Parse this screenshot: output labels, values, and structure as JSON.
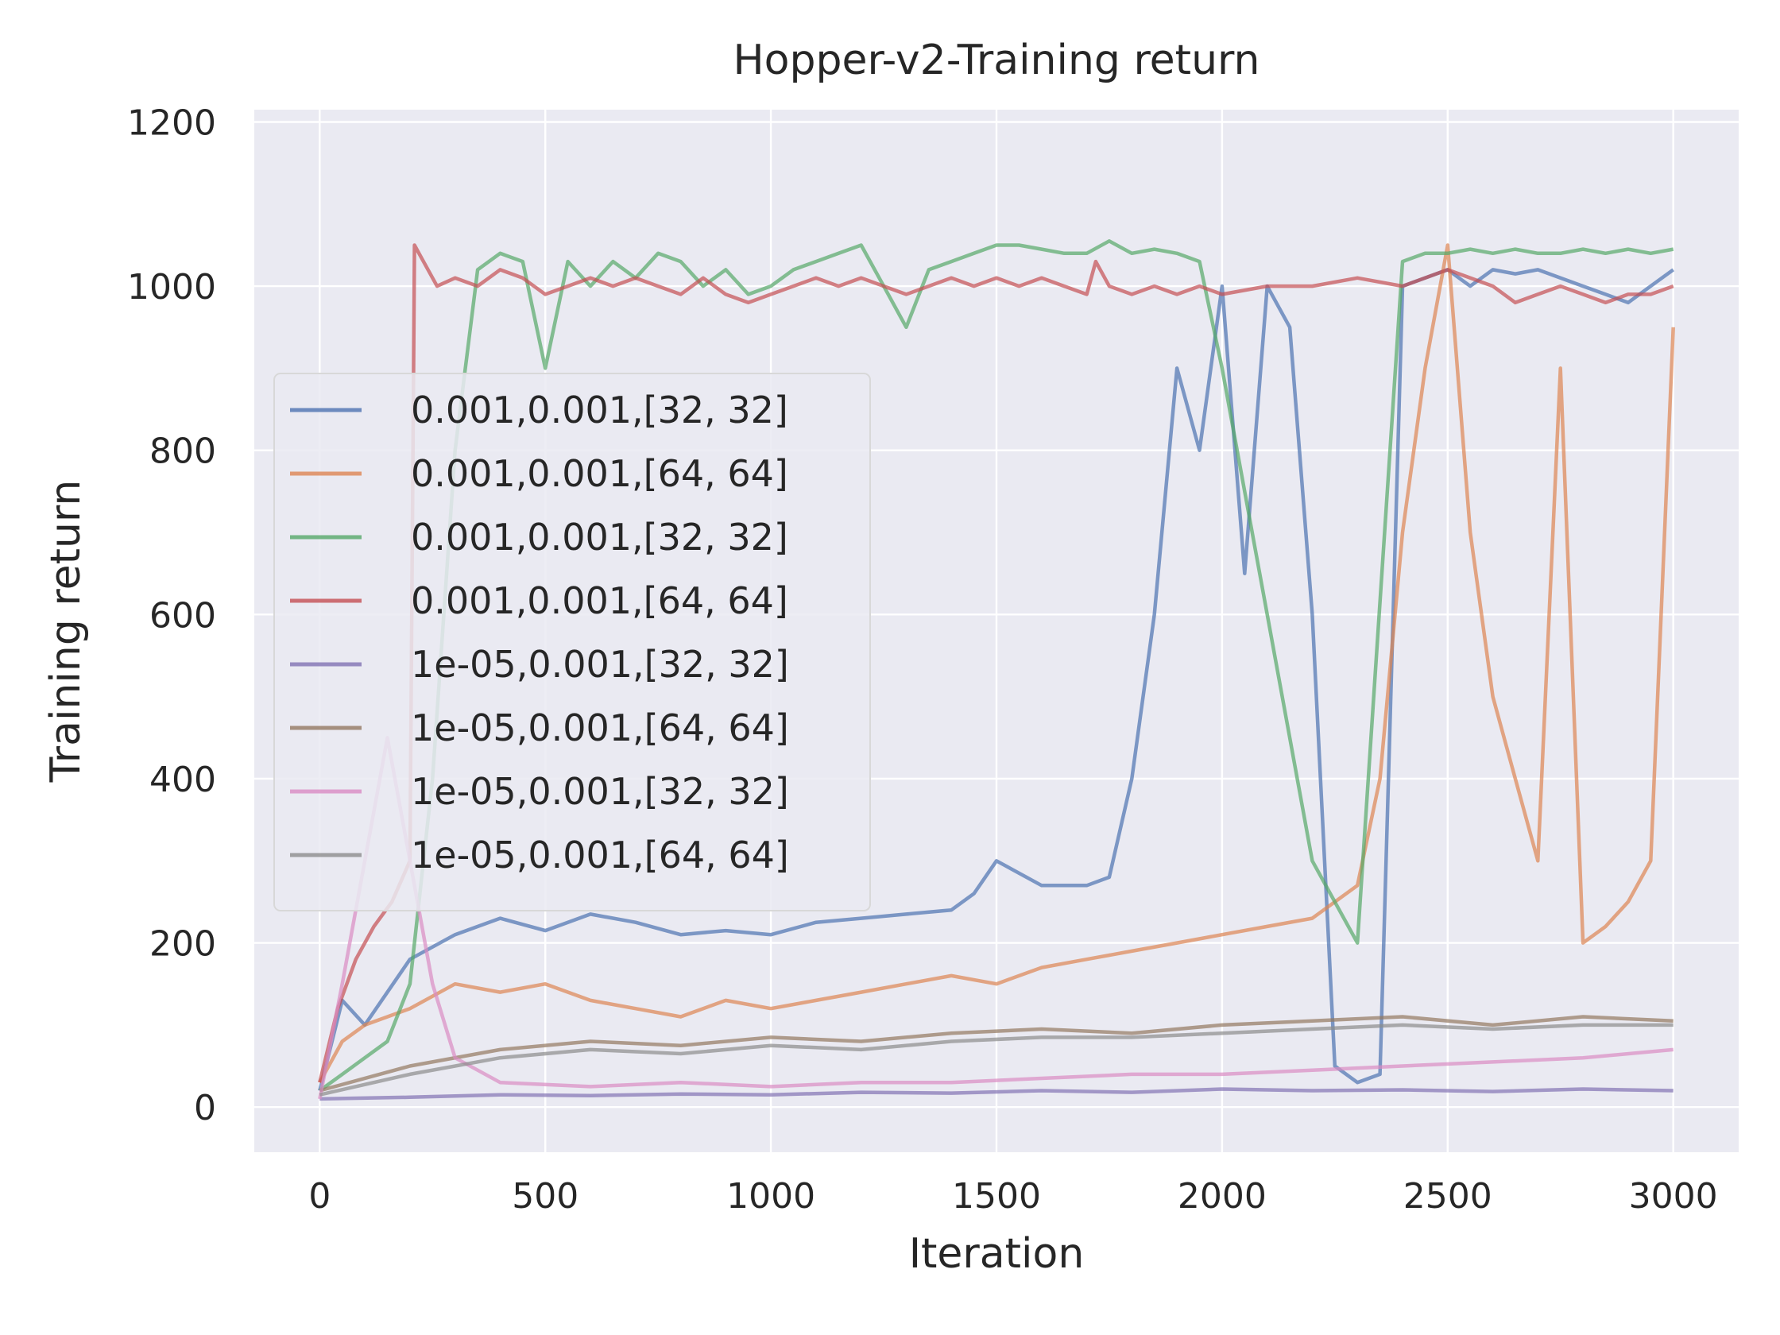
{
  "chart_data": {
    "type": "line",
    "title": "Hopper-v2-Training return",
    "xlabel": "Iteration",
    "ylabel": "Training return",
    "xlim": [
      -145,
      3145
    ],
    "ylim": [
      -55,
      1215
    ],
    "x_ticks": [
      0,
      500,
      1000,
      1500,
      2000,
      2500,
      3000
    ],
    "x_tick_labels": [
      "0",
      "500",
      "1000",
      "1500",
      "2000",
      "2500",
      "3000"
    ],
    "y_ticks": [
      0,
      200,
      400,
      600,
      800,
      1000,
      1200
    ],
    "y_tick_labels": [
      "0",
      "200",
      "400",
      "600",
      "800",
      "1000",
      "1200"
    ],
    "grid": true,
    "background": "#eaeaf2",
    "legend_position": "center-left",
    "series": [
      {
        "name": "0.001,0.001,[32, 32]",
        "color": "#4c72b0",
        "x": [
          0,
          50,
          100,
          200,
          300,
          400,
          500,
          600,
          700,
          800,
          900,
          1000,
          1100,
          1200,
          1300,
          1400,
          1450,
          1500,
          1600,
          1700,
          1750,
          1800,
          1850,
          1900,
          1950,
          2000,
          2050,
          2100,
          2150,
          2200,
          2250,
          2300,
          2350,
          2400,
          2450,
          2500,
          2550,
          2600,
          2650,
          2700,
          2750,
          2800,
          2850,
          2900,
          2950,
          3000
        ],
        "y": [
          20,
          130,
          100,
          180,
          210,
          230,
          215,
          235,
          225,
          210,
          215,
          210,
          225,
          230,
          235,
          240,
          260,
          300,
          270,
          270,
          280,
          400,
          600,
          900,
          800,
          1000,
          650,
          1000,
          950,
          600,
          50,
          30,
          40,
          1000,
          1010,
          1020,
          1000,
          1020,
          1015,
          1020,
          1010,
          1000,
          990,
          980,
          1000,
          1020
        ]
      },
      {
        "name": "0.001,0.001,[64, 64]",
        "color": "#dd8452",
        "x": [
          0,
          50,
          100,
          200,
          300,
          400,
          500,
          600,
          700,
          800,
          900,
          1000,
          1100,
          1200,
          1300,
          1400,
          1500,
          1600,
          1700,
          1800,
          1900,
          2000,
          2100,
          2200,
          2300,
          2350,
          2400,
          2450,
          2500,
          2550,
          2600,
          2650,
          2700,
          2750,
          2800,
          2850,
          2900,
          2950,
          3000
        ],
        "y": [
          30,
          80,
          100,
          120,
          150,
          140,
          150,
          130,
          120,
          110,
          130,
          120,
          130,
          140,
          150,
          160,
          150,
          170,
          180,
          190,
          200,
          210,
          220,
          230,
          270,
          400,
          700,
          900,
          1050,
          700,
          500,
          400,
          300,
          900,
          200,
          220,
          250,
          300,
          950
        ]
      },
      {
        "name": "0.001,0.001,[32, 32]",
        "color": "#55a868",
        "x": [
          0,
          50,
          100,
          150,
          200,
          250,
          300,
          350,
          400,
          450,
          500,
          550,
          600,
          650,
          700,
          750,
          800,
          850,
          900,
          950,
          1000,
          1050,
          1100,
          1150,
          1200,
          1250,
          1300,
          1350,
          1400,
          1450,
          1500,
          1550,
          1600,
          1650,
          1700,
          1750,
          1800,
          1850,
          1900,
          1950,
          2000,
          2100,
          2200,
          2300,
          2400,
          2450,
          2500,
          2550,
          2600,
          2650,
          2700,
          2750,
          2800,
          2850,
          2900,
          2950,
          3000
        ],
        "y": [
          20,
          40,
          60,
          80,
          150,
          400,
          800,
          1020,
          1040,
          1030,
          900,
          1030,
          1000,
          1030,
          1010,
          1040,
          1030,
          1000,
          1020,
          990,
          1000,
          1020,
          1030,
          1040,
          1050,
          1000,
          950,
          1020,
          1030,
          1040,
          1050,
          1050,
          1045,
          1040,
          1040,
          1055,
          1040,
          1045,
          1040,
          1030,
          900,
          600,
          300,
          200,
          1030,
          1040,
          1040,
          1045,
          1040,
          1045,
          1040,
          1040,
          1045,
          1040,
          1045,
          1040,
          1045
        ]
      },
      {
        "name": "0.001,0.001,[64, 64]",
        "color": "#c44e52",
        "x": [
          0,
          40,
          80,
          120,
          160,
          200,
          210,
          230,
          260,
          300,
          350,
          400,
          450,
          500,
          550,
          600,
          650,
          700,
          750,
          800,
          850,
          900,
          950,
          1000,
          1050,
          1100,
          1150,
          1200,
          1250,
          1300,
          1350,
          1400,
          1450,
          1500,
          1550,
          1600,
          1650,
          1700,
          1720,
          1750,
          1800,
          1850,
          1900,
          1950,
          2000,
          2100,
          2200,
          2300,
          2400,
          2450,
          2500,
          2550,
          2600,
          2650,
          2700,
          2750,
          2800,
          2850,
          2900,
          2950,
          3000
        ],
        "y": [
          30,
          120,
          180,
          220,
          250,
          300,
          1050,
          1030,
          1000,
          1010,
          1000,
          1020,
          1010,
          990,
          1000,
          1010,
          1000,
          1010,
          1000,
          990,
          1010,
          990,
          980,
          990,
          1000,
          1010,
          1000,
          1010,
          1000,
          990,
          1000,
          1010,
          1000,
          1010,
          1000,
          1010,
          1000,
          990,
          1030,
          1000,
          990,
          1000,
          990,
          1000,
          990,
          1000,
          1000,
          1010,
          1000,
          1010,
          1020,
          1010,
          1000,
          980,
          990,
          1000,
          990,
          980,
          990,
          990,
          1000
        ]
      },
      {
        "name": "1e-05,0.001,[32, 32]",
        "color": "#8172b3",
        "x": [
          0,
          200,
          400,
          600,
          800,
          1000,
          1200,
          1400,
          1600,
          1800,
          2000,
          2200,
          2400,
          2600,
          2800,
          3000
        ],
        "y": [
          10,
          12,
          15,
          14,
          16,
          15,
          18,
          17,
          20,
          18,
          22,
          20,
          21,
          19,
          22,
          20
        ]
      },
      {
        "name": "1e-05,0.001,[64, 64]",
        "color": "#937860",
        "x": [
          0,
          200,
          400,
          600,
          800,
          1000,
          1200,
          1400,
          1600,
          1800,
          2000,
          2200,
          2400,
          2600,
          2800,
          3000
        ],
        "y": [
          20,
          50,
          70,
          80,
          75,
          85,
          80,
          90,
          95,
          90,
          100,
          105,
          110,
          100,
          110,
          105
        ]
      },
      {
        "name": "1e-05,0.001,[32, 32]",
        "color": "#da8bc3",
        "x": [
          0,
          50,
          100,
          150,
          200,
          250,
          300,
          400,
          600,
          800,
          1000,
          1200,
          1400,
          1600,
          1800,
          2000,
          2200,
          2400,
          2600,
          2800,
          3000
        ],
        "y": [
          10,
          150,
          300,
          450,
          300,
          150,
          60,
          30,
          25,
          30,
          25,
          30,
          30,
          35,
          40,
          40,
          45,
          50,
          55,
          60,
          70
        ]
      },
      {
        "name": "1e-05,0.001,[64, 64]",
        "color": "#8c8c8c",
        "x": [
          0,
          200,
          400,
          600,
          800,
          1000,
          1200,
          1400,
          1600,
          1800,
          2000,
          2200,
          2400,
          2600,
          2800,
          3000
        ],
        "y": [
          15,
          40,
          60,
          70,
          65,
          75,
          70,
          80,
          85,
          85,
          90,
          95,
          100,
          95,
          100,
          100
        ]
      }
    ]
  }
}
